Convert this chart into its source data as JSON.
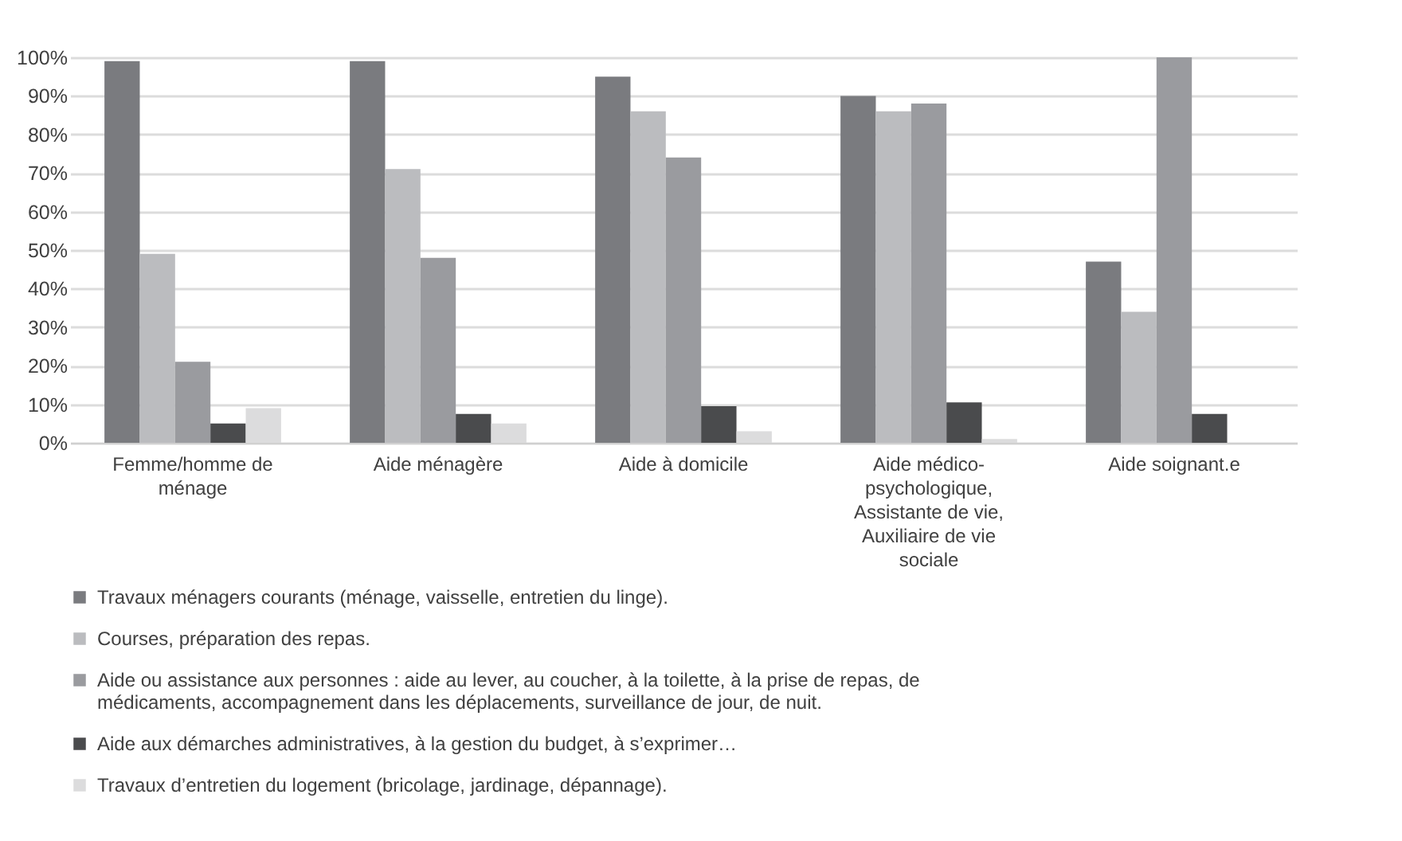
{
  "chart_data": {
    "type": "bar",
    "categories": [
      "Femme/homme de ménage",
      "Aide ménagère",
      "Aide à domicile",
      "Aide médico-psychologique, Assistante de vie, Auxiliaire de vie sociale",
      "Aide soignant.e"
    ],
    "series": [
      {
        "name": "Travaux ménagers courants (ménage, vaisselle, entretien du linge).",
        "color": "#7a7b7f",
        "values": [
          99,
          99,
          95,
          90,
          47
        ]
      },
      {
        "name": "Courses, préparation des repas.",
        "color": "#bbbcbf",
        "values": [
          49,
          71,
          86,
          86,
          34
        ]
      },
      {
        "name": "Aide ou assistance aux personnes : aide au lever, au coucher, à la toilette, à la prise de repas, de médicaments, accompagnement dans les déplacements, surveillance de jour, de nuit.",
        "color": "#9a9b9f",
        "values": [
          21,
          48,
          74,
          88,
          100
        ]
      },
      {
        "name": "Aide aux démarches administratives, à la gestion du budget, à s’exprimer…",
        "color": "#4a4b4d",
        "values": [
          5,
          7.5,
          9.5,
          10.5,
          7.5
        ]
      },
      {
        "name": "Travaux d’entretien du logement (bricolage, jardinage, dépannage).",
        "color": "#dcdcdd",
        "values": [
          9,
          5,
          3,
          1,
          null
        ]
      }
    ],
    "ylim": [
      0,
      100
    ],
    "yticks": [
      {
        "value": 0,
        "label": "0%"
      },
      {
        "value": 10,
        "label": "10%"
      },
      {
        "value": 20,
        "label": "20%"
      },
      {
        "value": 30,
        "label": "30%"
      },
      {
        "value": 40,
        "label": "40%"
      },
      {
        "value": 50,
        "label": "50%"
      },
      {
        "value": 60,
        "label": "60%"
      },
      {
        "value": 70,
        "label": "70%"
      },
      {
        "value": 80,
        "label": "80%"
      },
      {
        "value": 90,
        "label": "90%"
      },
      {
        "value": 100,
        "label": "100%"
      }
    ],
    "grid": "y",
    "legend": "bottom"
  }
}
